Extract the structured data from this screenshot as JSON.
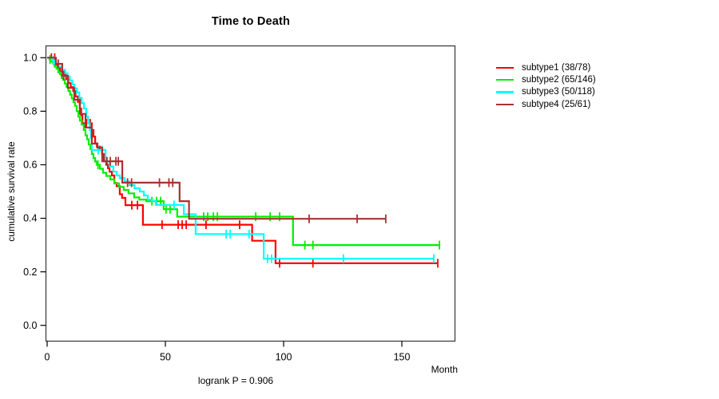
{
  "chart_data": {
    "type": "line",
    "subtype": "kaplan-meier-step",
    "title": "Time to Death",
    "xlabel": "Month",
    "ylabel": "cumulative survival rate",
    "footnote": "logrank P = 0.906",
    "xlim": [
      0,
      172
    ],
    "ylim": [
      0.0,
      1.0
    ],
    "x_ticks": [
      {
        "label": "0",
        "value": 0
      },
      {
        "label": "50",
        "value": 50
      },
      {
        "label": "100",
        "value": 100
      },
      {
        "label": "150",
        "value": 150
      }
    ],
    "y_ticks": [
      {
        "label": "1.0",
        "value": 1.0
      },
      {
        "label": "0.8",
        "value": 0.8
      },
      {
        "label": "0.6",
        "value": 0.6
      },
      {
        "label": "0.4",
        "value": 0.4
      },
      {
        "label": "0.2",
        "value": 0.2
      },
      {
        "label": "0.0",
        "value": 0.0
      }
    ],
    "grid": false,
    "legend_position": "right-outside",
    "series": [
      {
        "name": "subtype1",
        "legend_label": "subtype1 (38/78)",
        "events": 38,
        "n": 78,
        "color": "#FF0000",
        "steps": [
          [
            0,
            1
          ],
          [
            2,
            0.987
          ],
          [
            3,
            0.974
          ],
          [
            4.5,
            0.961
          ],
          [
            5.5,
            0.948
          ],
          [
            7,
            0.935
          ],
          [
            8,
            0.92
          ],
          [
            9,
            0.905
          ],
          [
            10,
            0.89
          ],
          [
            11,
            0.875
          ],
          [
            12,
            0.855
          ],
          [
            13,
            0.835
          ],
          [
            13.8,
            0.81
          ],
          [
            14.4,
            0.785
          ],
          [
            14.9,
            0.755
          ],
          [
            18.9,
            0.73
          ],
          [
            19.6,
            0.705
          ],
          [
            20.3,
            0.68
          ],
          [
            21,
            0.668
          ],
          [
            22.3,
            0.655
          ],
          [
            23.2,
            0.64
          ],
          [
            24,
            0.613
          ],
          [
            25,
            0.6
          ],
          [
            25.7,
            0.587
          ],
          [
            26.4,
            0.574
          ],
          [
            27.4,
            0.56
          ],
          [
            28.4,
            0.532
          ],
          [
            29.4,
            0.52
          ],
          [
            30.7,
            0.49
          ],
          [
            31.7,
            0.476
          ],
          [
            33.1,
            0.449
          ],
          [
            40.5,
            0.376
          ],
          [
            86.7,
            0.316
          ],
          [
            96.6,
            0.232
          ]
        ],
        "end_month": 165.2,
        "censors": [
          [
            1.8,
            1
          ],
          [
            3.2,
            1
          ],
          [
            16.6,
            0.755
          ],
          [
            18.2,
            0.755
          ],
          [
            35.8,
            0.449
          ],
          [
            38.2,
            0.449
          ],
          [
            48.6,
            0.376
          ],
          [
            55.4,
            0.376
          ],
          [
            57.1,
            0.376
          ],
          [
            58.8,
            0.376
          ],
          [
            67.2,
            0.376
          ],
          [
            81.4,
            0.376
          ],
          [
            98.3,
            0.232
          ],
          [
            112.4,
            0.232
          ],
          [
            165.2,
            0.232
          ]
        ]
      },
      {
        "name": "subtype2",
        "legend_label": "subtype2 (65/146)",
        "events": 65,
        "n": 146,
        "color": "#00EE00",
        "steps": [
          [
            0,
            1
          ],
          [
            1,
            0.993
          ],
          [
            1.8,
            0.986
          ],
          [
            2.5,
            0.979
          ],
          [
            3.2,
            0.966
          ],
          [
            4,
            0.959
          ],
          [
            4.7,
            0.945
          ],
          [
            5.4,
            0.938
          ],
          [
            6.1,
            0.924
          ],
          [
            6.8,
            0.917
          ],
          [
            7.5,
            0.903
          ],
          [
            8.2,
            0.89
          ],
          [
            9,
            0.876
          ],
          [
            9.7,
            0.862
          ],
          [
            10.4,
            0.848
          ],
          [
            11.1,
            0.834
          ],
          [
            11.8,
            0.82
          ],
          [
            12.5,
            0.8
          ],
          [
            13.2,
            0.78
          ],
          [
            13.9,
            0.765
          ],
          [
            14.6,
            0.75
          ],
          [
            15.5,
            0.73
          ],
          [
            16.2,
            0.71
          ],
          [
            16.9,
            0.695
          ],
          [
            17.6,
            0.675
          ],
          [
            18.3,
            0.658
          ],
          [
            18.9,
            0.64
          ],
          [
            19.6,
            0.625
          ],
          [
            20.3,
            0.612
          ],
          [
            21,
            0.6
          ],
          [
            22.3,
            0.585
          ],
          [
            23.6,
            0.57
          ],
          [
            25,
            0.558
          ],
          [
            26.7,
            0.545
          ],
          [
            28.4,
            0.53
          ],
          [
            30.4,
            0.517
          ],
          [
            32.4,
            0.506
          ],
          [
            34.4,
            0.493
          ],
          [
            36.8,
            0.478
          ],
          [
            39,
            0.47
          ],
          [
            41.9,
            0.464
          ],
          [
            49.3,
            0.434
          ],
          [
            55,
            0.406
          ],
          [
            104,
            0.3
          ]
        ],
        "end_month": 165.9,
        "censors": [
          [
            1.2,
            0.993
          ],
          [
            21.5,
            0.6
          ],
          [
            44.3,
            0.464
          ],
          [
            46.3,
            0.464
          ],
          [
            48,
            0.464
          ],
          [
            50.3,
            0.434
          ],
          [
            52,
            0.434
          ],
          [
            66.2,
            0.406
          ],
          [
            67.9,
            0.406
          ],
          [
            70.3,
            0.406
          ],
          [
            72,
            0.406
          ],
          [
            88.2,
            0.406
          ],
          [
            94.3,
            0.406
          ],
          [
            98.3,
            0.406
          ],
          [
            109,
            0.3
          ],
          [
            112.4,
            0.3
          ],
          [
            165.9,
            0.3
          ]
        ]
      },
      {
        "name": "subtype3",
        "legend_label": "subtype3 (50/118)",
        "events": 50,
        "n": 118,
        "color": "#00FFFF",
        "steps": [
          [
            0,
            1
          ],
          [
            2,
            0.99
          ],
          [
            3.4,
            0.978
          ],
          [
            4.8,
            0.966
          ],
          [
            6.2,
            0.954
          ],
          [
            7.6,
            0.942
          ],
          [
            8.6,
            0.93
          ],
          [
            9.6,
            0.915
          ],
          [
            10.6,
            0.9
          ],
          [
            11.6,
            0.885
          ],
          [
            12.6,
            0.87
          ],
          [
            13.6,
            0.85
          ],
          [
            14.6,
            0.83
          ],
          [
            15.6,
            0.81
          ],
          [
            16.6,
            0.78
          ],
          [
            17.3,
            0.755
          ],
          [
            18,
            0.73
          ],
          [
            18.5,
            0.7
          ],
          [
            18.9,
            0.655
          ],
          [
            24.7,
            0.613
          ],
          [
            26.4,
            0.594
          ],
          [
            28,
            0.574
          ],
          [
            29.4,
            0.56
          ],
          [
            30.7,
            0.55
          ],
          [
            32.8,
            0.537
          ],
          [
            34.8,
            0.524
          ],
          [
            37,
            0.512
          ],
          [
            39.2,
            0.5
          ],
          [
            40.9,
            0.485
          ],
          [
            42.6,
            0.47
          ],
          [
            44.3,
            0.465
          ],
          [
            46,
            0.45
          ],
          [
            57.8,
            0.415
          ],
          [
            62.8,
            0.341
          ],
          [
            91.6,
            0.249
          ]
        ],
        "end_month": 163.5,
        "censors": [
          [
            2.7,
            0.99
          ],
          [
            21.6,
            0.655
          ],
          [
            23.3,
            0.655
          ],
          [
            53.7,
            0.45
          ],
          [
            75.7,
            0.341
          ],
          [
            77.4,
            0.341
          ],
          [
            85.4,
            0.341
          ],
          [
            93.2,
            0.249
          ],
          [
            94.9,
            0.249
          ],
          [
            125.3,
            0.249
          ],
          [
            163.5,
            0.249
          ]
        ]
      },
      {
        "name": "subtype4",
        "legend_label": "subtype4 (25/61)",
        "events": 25,
        "n": 61,
        "color": "#A83232",
        "steps": [
          [
            0,
            1
          ],
          [
            3.7,
            0.977
          ],
          [
            6.4,
            0.932
          ],
          [
            8.8,
            0.887
          ],
          [
            11.5,
            0.843
          ],
          [
            13.9,
            0.79
          ],
          [
            16.2,
            0.739
          ],
          [
            18.9,
            0.679
          ],
          [
            21.3,
            0.664
          ],
          [
            23.3,
            0.613
          ],
          [
            31.8,
            0.533
          ],
          [
            56,
            0.464
          ],
          [
            60,
            0.398
          ]
        ],
        "end_month": 143.2,
        "censors": [
          [
            4.7,
            0.977
          ],
          [
            7,
            0.932
          ],
          [
            25.3,
            0.613
          ],
          [
            26.7,
            0.613
          ],
          [
            29.1,
            0.613
          ],
          [
            30.1,
            0.613
          ],
          [
            34,
            0.533
          ],
          [
            35.7,
            0.533
          ],
          [
            47.5,
            0.533
          ],
          [
            51.5,
            0.533
          ],
          [
            53.1,
            0.533
          ],
          [
            110.8,
            0.398
          ],
          [
            131.1,
            0.398
          ],
          [
            143.2,
            0.398
          ]
        ]
      }
    ]
  }
}
